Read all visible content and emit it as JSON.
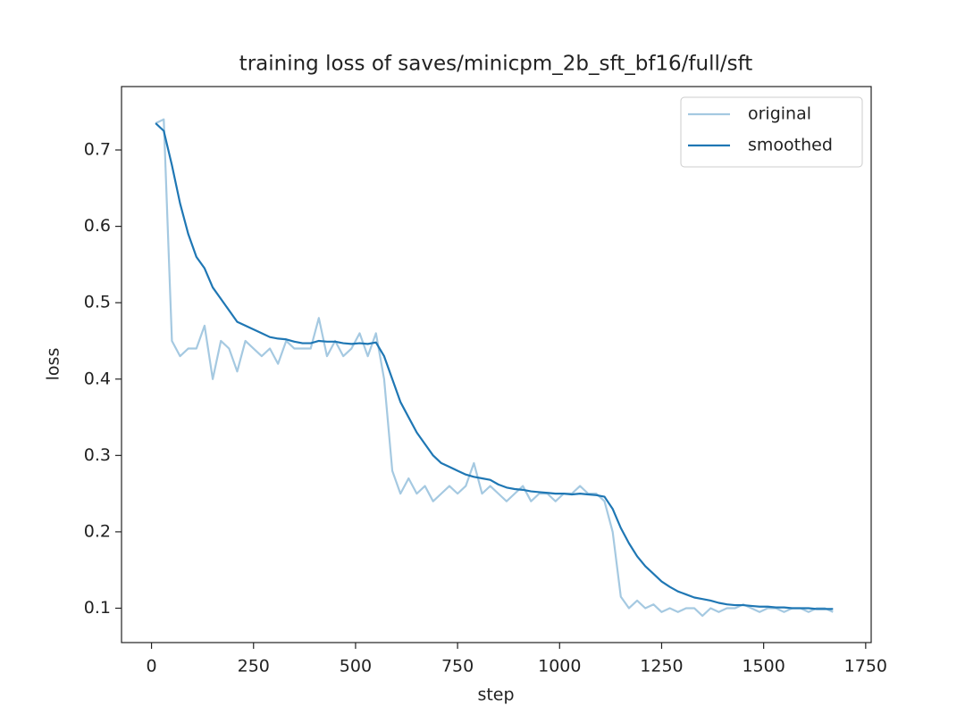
{
  "chart_data": {
    "type": "line",
    "title": "training loss of saves/minicpm_2b_sft_bf16/full/sft",
    "xlabel": "step",
    "ylabel": "loss",
    "x": [
      10,
      30,
      50,
      70,
      90,
      110,
      130,
      150,
      170,
      190,
      210,
      230,
      250,
      270,
      290,
      310,
      330,
      350,
      370,
      390,
      410,
      430,
      450,
      470,
      490,
      510,
      530,
      550,
      570,
      590,
      610,
      630,
      650,
      670,
      690,
      710,
      730,
      750,
      770,
      790,
      810,
      830,
      850,
      870,
      890,
      910,
      930,
      950,
      970,
      990,
      1010,
      1030,
      1050,
      1070,
      1090,
      1110,
      1130,
      1150,
      1170,
      1190,
      1210,
      1230,
      1250,
      1270,
      1290,
      1310,
      1330,
      1350,
      1370,
      1390,
      1410,
      1430,
      1450,
      1470,
      1490,
      1510,
      1530,
      1550,
      1570,
      1590,
      1610,
      1630,
      1650,
      1670
    ],
    "series": [
      {
        "name": "original",
        "color": "#1f77b4",
        "opacity": 0.4,
        "values": [
          0.735,
          0.74,
          0.45,
          0.43,
          0.44,
          0.44,
          0.47,
          0.4,
          0.45,
          0.44,
          0.41,
          0.45,
          0.44,
          0.43,
          0.44,
          0.42,
          0.45,
          0.44,
          0.44,
          0.44,
          0.48,
          0.43,
          0.45,
          0.43,
          0.44,
          0.46,
          0.43,
          0.46,
          0.4,
          0.28,
          0.25,
          0.27,
          0.25,
          0.26,
          0.24,
          0.25,
          0.26,
          0.25,
          0.26,
          0.29,
          0.25,
          0.26,
          0.25,
          0.24,
          0.25,
          0.26,
          0.24,
          0.25,
          0.25,
          0.24,
          0.25,
          0.25,
          0.26,
          0.25,
          0.25,
          0.24,
          0.2,
          0.115,
          0.1,
          0.11,
          0.1,
          0.105,
          0.095,
          0.1,
          0.095,
          0.1,
          0.1,
          0.09,
          0.1,
          0.095,
          0.1,
          0.1,
          0.105,
          0.1,
          0.095,
          0.1,
          0.1,
          0.095,
          0.1,
          0.1,
          0.095,
          0.1,
          0.1,
          0.095
        ]
      },
      {
        "name": "smoothed",
        "color": "#1f77b4",
        "opacity": 1,
        "values": [
          0.735,
          0.725,
          0.68,
          0.63,
          0.59,
          0.56,
          0.545,
          0.52,
          0.505,
          0.49,
          0.475,
          0.47,
          0.465,
          0.46,
          0.455,
          0.453,
          0.452,
          0.449,
          0.447,
          0.447,
          0.45,
          0.449,
          0.449,
          0.447,
          0.446,
          0.447,
          0.446,
          0.448,
          0.43,
          0.4,
          0.37,
          0.35,
          0.33,
          0.315,
          0.3,
          0.29,
          0.285,
          0.28,
          0.275,
          0.272,
          0.27,
          0.268,
          0.262,
          0.258,
          0.256,
          0.255,
          0.253,
          0.252,
          0.251,
          0.25,
          0.25,
          0.249,
          0.25,
          0.249,
          0.248,
          0.246,
          0.23,
          0.205,
          0.185,
          0.168,
          0.155,
          0.145,
          0.135,
          0.128,
          0.122,
          0.118,
          0.114,
          0.112,
          0.11,
          0.107,
          0.105,
          0.104,
          0.104,
          0.103,
          0.102,
          0.102,
          0.101,
          0.101,
          0.1,
          0.1,
          0.1,
          0.099,
          0.099,
          0.099
        ]
      }
    ],
    "xlim": [
      -73.5,
      1763.5
    ],
    "xticks": [
      0,
      250,
      500,
      750,
      1000,
      1250,
      1500,
      1750
    ],
    "ylim": [
      0.055,
      0.783
    ],
    "yticks": [
      0.1,
      0.2,
      0.3,
      0.4,
      0.5,
      0.6,
      0.7
    ],
    "grid": false,
    "legend": "upper right"
  }
}
